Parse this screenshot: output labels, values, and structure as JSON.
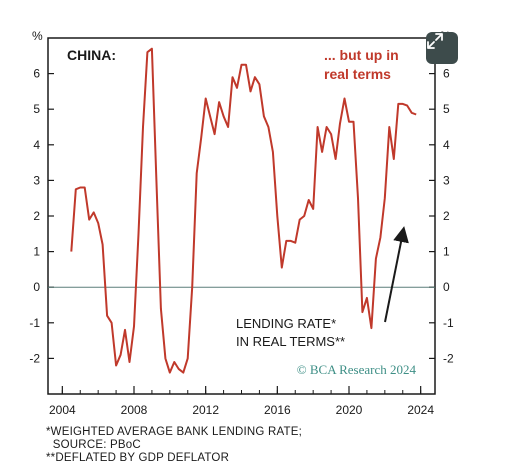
{
  "chart_data": {
    "type": "line",
    "title": "CHINA:",
    "annotation_top_right": [
      "... but up in",
      "real terms"
    ],
    "annotation_series": [
      "LENDING RATE*",
      "IN REAL TERMS**"
    ],
    "watermark": "© BCA Research 2024",
    "left_unit": "%",
    "right_unit": "%",
    "ylim": [
      -3,
      7
    ],
    "xlim": [
      2003.2,
      2024.8
    ],
    "yticks": [
      -2,
      -1,
      0,
      1,
      2,
      3,
      4,
      5,
      6
    ],
    "ytick_labels": [
      "-2",
      "-1",
      "0",
      "1",
      "2",
      "3",
      "4",
      "5",
      "6"
    ],
    "xticks": [
      2004,
      2008,
      2012,
      2016,
      2020,
      2024
    ],
    "xtick_labels": [
      "2004",
      "2008",
      "2012",
      "2016",
      "2020",
      "2024"
    ],
    "zero_line": true,
    "grid": false,
    "series": [
      {
        "color": "#c0392b",
        "x": [
          2004.5,
          2004.75,
          2005.0,
          2005.25,
          2005.5,
          2005.75,
          2006.0,
          2006.25,
          2006.5,
          2006.75,
          2007.0,
          2007.25,
          2007.5,
          2007.75,
          2008.0,
          2008.25,
          2008.5,
          2008.75,
          2009.0,
          2009.25,
          2009.5,
          2009.75,
          2010.0,
          2010.25,
          2010.5,
          2010.75,
          2011.0,
          2011.25,
          2011.5,
          2011.75,
          2012.0,
          2012.25,
          2012.5,
          2012.75,
          2013.0,
          2013.25,
          2013.5,
          2013.75,
          2014.0,
          2014.25,
          2014.5,
          2014.75,
          2015.0,
          2015.25,
          2015.5,
          2015.75,
          2016.0,
          2016.25,
          2016.5,
          2016.75,
          2017.0,
          2017.25,
          2017.5,
          2017.75,
          2018.0,
          2018.25,
          2018.5,
          2018.75,
          2019.0,
          2019.25,
          2019.5,
          2019.75,
          2020.0,
          2020.25,
          2020.5,
          2020.75,
          2021.0,
          2021.25,
          2021.5,
          2021.75,
          2022.0,
          2022.25,
          2022.5,
          2022.75,
          2023.0,
          2023.25,
          2023.5,
          2023.75
        ],
        "y": [
          1.0,
          2.75,
          2.8,
          2.8,
          1.9,
          2.1,
          1.8,
          1.2,
          -0.8,
          -1.0,
          -2.2,
          -1.9,
          -1.2,
          -2.1,
          -1.1,
          1.5,
          4.5,
          6.6,
          6.7,
          3.0,
          -0.6,
          -2.0,
          -2.4,
          -2.1,
          -2.3,
          -2.4,
          -2.0,
          0.0,
          3.2,
          4.2,
          5.3,
          4.8,
          4.3,
          5.2,
          4.8,
          4.5,
          5.9,
          5.6,
          6.25,
          6.25,
          5.5,
          5.9,
          5.7,
          4.8,
          4.5,
          3.8,
          2.0,
          0.55,
          1.3,
          1.3,
          1.25,
          1.9,
          2.0,
          2.45,
          2.2,
          4.5,
          3.8,
          4.5,
          4.3,
          3.6,
          4.6,
          5.3,
          4.65,
          4.65,
          2.5,
          -0.7,
          -0.3,
          -1.15,
          0.8,
          1.4,
          2.5,
          4.5,
          3.6,
          5.15,
          5.15,
          5.1,
          4.9,
          4.85
        ]
      }
    ]
  },
  "controls": {
    "expand_icon": "expand-arrows-icon"
  },
  "footnotes": [
    "*WEIGHTED AVERAGE BANK LENDING RATE;",
    "  SOURCE: PBoC",
    "**DEFLATED BY GDP DEFLATOR"
  ]
}
